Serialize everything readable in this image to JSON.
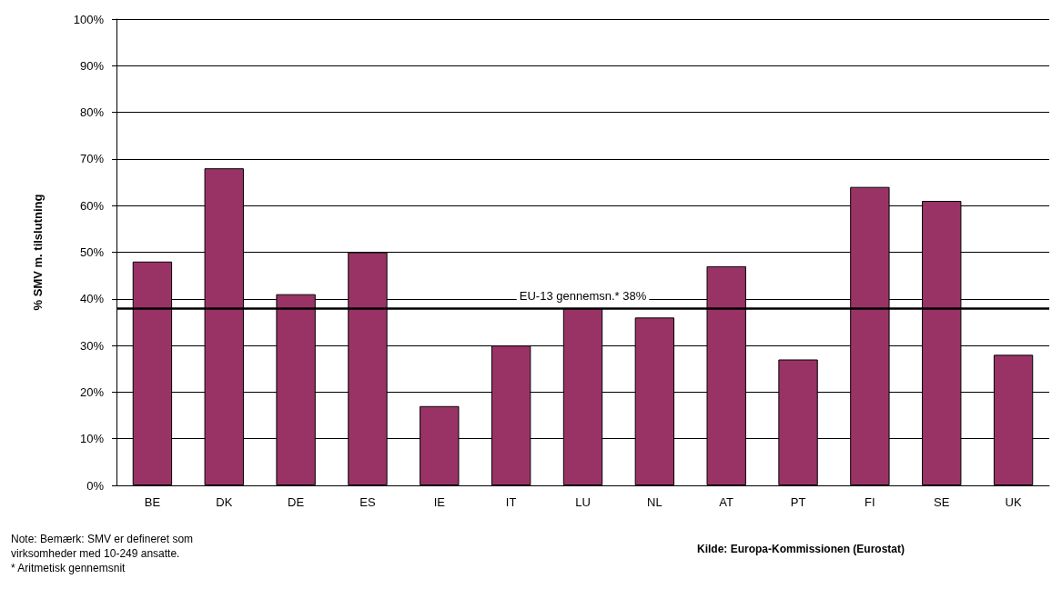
{
  "chart_data": {
    "type": "bar",
    "ylabel": "% SMV m. tilslutning",
    "categories": [
      "BE",
      "DK",
      "DE",
      "ES",
      "IE",
      "IT",
      "LU",
      "NL",
      "AT",
      "PT",
      "FI",
      "SE",
      "UK"
    ],
    "values": [
      48,
      68,
      41,
      50,
      17,
      30,
      38,
      36,
      47,
      27,
      64,
      61,
      28
    ],
    "color": "#993366",
    "ylim": [
      0,
      100
    ],
    "yticks": [
      {
        "value": 0,
        "label": "0%"
      },
      {
        "value": 10,
        "label": "10%"
      },
      {
        "value": 20,
        "label": "20%"
      },
      {
        "value": 30,
        "label": "30%"
      },
      {
        "value": 40,
        "label": "40%"
      },
      {
        "value": 50,
        "label": "50%"
      },
      {
        "value": 60,
        "label": "60%"
      },
      {
        "value": 70,
        "label": "70%"
      },
      {
        "value": 80,
        "label": "80%"
      },
      {
        "value": 90,
        "label": "90%"
      },
      {
        "value": 100,
        "label": "100%"
      }
    ],
    "grid": "y",
    "ref_lines": [
      {
        "axis": "y",
        "value": 38,
        "label": "EU-13 gennemsn.* 38%",
        "color": "#000000"
      }
    ],
    "annotations": [
      "Note: Bemærk: SMV er defineret som virksomheder med 10-249 ansatte.",
      "* Aritmetisk gennemsnit",
      "Kilde: Europa-Kommissionen (Eurostat)"
    ]
  }
}
